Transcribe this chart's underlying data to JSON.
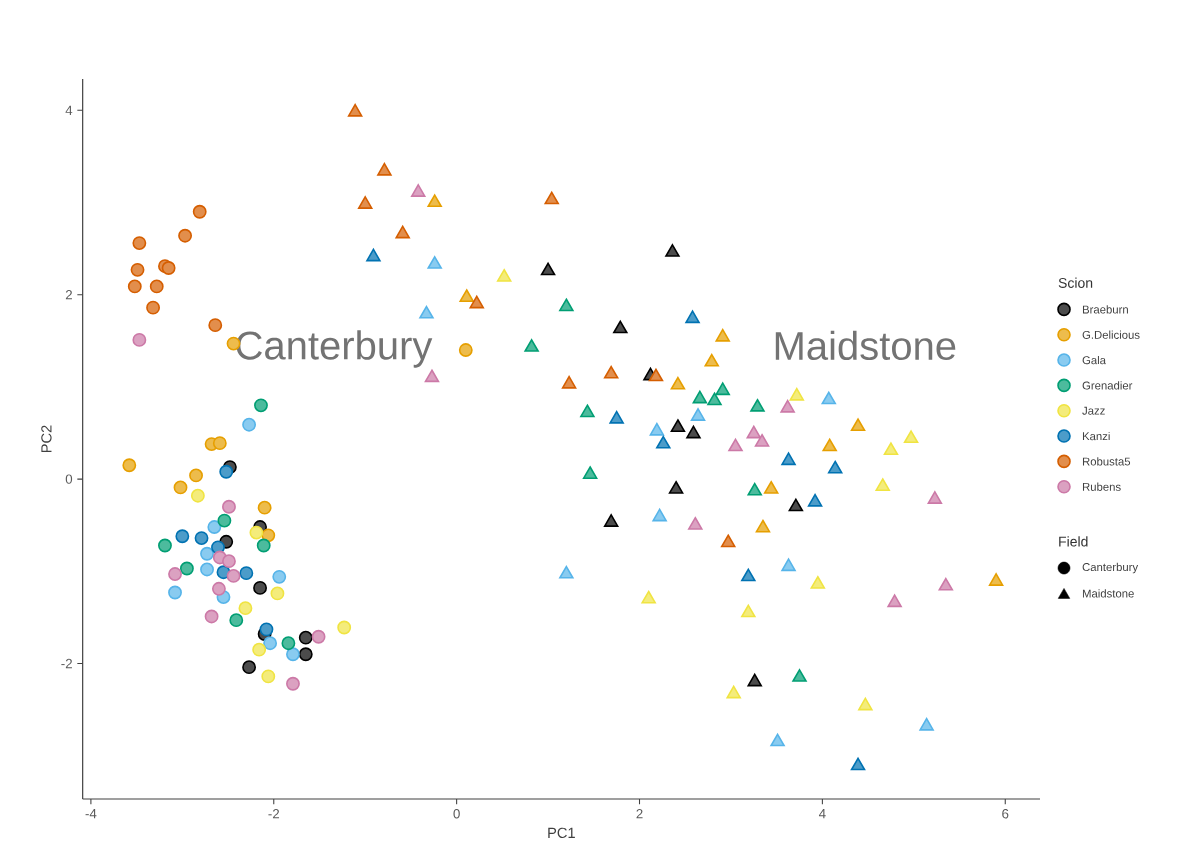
{
  "chart_data": {
    "type": "scatter",
    "xlabel": "PC1",
    "ylabel": "PC2",
    "legend_title": "Scion",
    "legend": "right",
    "xlim": [
      -4.09,
      6.38
    ],
    "ylim": [
      -3.47,
      4.34
    ],
    "xticks": [
      -4,
      -2,
      0,
      2,
      4,
      6
    ],
    "yticks": [
      -2,
      0,
      2,
      4
    ],
    "series": [
      {
        "name": "Braeburn",
        "color": "#000000",
        "marker": "circle",
        "x": [
          -2.48,
          -2.15,
          -2.52,
          -2.15,
          -2.1,
          -1.65,
          -1.65,
          -2.27
        ],
        "values": [
          0.13,
          -0.52,
          -0.68,
          -1.18,
          -1.68,
          -1.72,
          -1.9,
          -2.04
        ]
      },
      {
        "name": "G.Delicious",
        "color": "#e69f00",
        "marker": "circle",
        "x": [
          -2.44,
          0.1,
          -2.68,
          -2.59,
          -3.58,
          -2.85,
          -3.02,
          -2.1,
          -2.06
        ],
        "values": [
          1.47,
          1.4,
          0.38,
          0.39,
          0.15,
          0.04,
          -0.09,
          -0.31,
          -0.61
        ]
      },
      {
        "name": "Gala",
        "color": "#56b4e9",
        "marker": "circle",
        "x": [
          -2.27,
          -2.65,
          -2.73,
          -2.73,
          -1.94,
          -3.08,
          -2.55,
          -2.04,
          -1.79
        ],
        "values": [
          0.59,
          -0.52,
          -0.81,
          -0.98,
          -1.06,
          -1.23,
          -1.28,
          -1.78,
          -1.9
        ]
      },
      {
        "name": "Grenadier",
        "color": "#009e73",
        "marker": "circle",
        "x": [
          -2.14,
          -2.54,
          -3.19,
          -2.11,
          -2.95,
          -2.41,
          -1.84
        ],
        "values": [
          0.8,
          -0.45,
          -0.72,
          -0.72,
          -0.97,
          -1.53,
          -1.78
        ]
      },
      {
        "name": "Jazz",
        "color": "#f0e442",
        "marker": "circle",
        "x": [
          -2.83,
          -2.19,
          -1.96,
          -2.31,
          -1.23,
          -2.16,
          -2.06
        ],
        "values": [
          -0.18,
          -0.58,
          -1.24,
          -1.4,
          -1.61,
          -1.85,
          -2.14
        ]
      },
      {
        "name": "Kanzi",
        "color": "#0072b2",
        "marker": "circle",
        "x": [
          -2.52,
          -3.0,
          -2.79,
          -2.61,
          -2.55,
          -2.3,
          -2.08
        ],
        "values": [
          0.08,
          -0.62,
          -0.64,
          -0.74,
          -1.01,
          -1.02,
          -1.63
        ]
      },
      {
        "name": "Robusta5",
        "color": "#d55e00",
        "marker": "circle",
        "x": [
          -2.81,
          -2.97,
          -3.47,
          -3.19,
          -3.15,
          -3.49,
          -3.52,
          -3.28,
          -3.32,
          -2.64
        ],
        "values": [
          2.9,
          2.64,
          2.56,
          2.31,
          2.29,
          2.27,
          2.09,
          2.09,
          1.86,
          1.67
        ]
      },
      {
        "name": "Rubens",
        "color": "#cc79a7",
        "marker": "circle",
        "x": [
          -3.47,
          -2.49,
          -2.59,
          -2.49,
          -3.08,
          -2.44,
          -2.6,
          -2.68,
          -1.51,
          -1.79
        ],
        "values": [
          1.51,
          -0.3,
          -0.85,
          -0.89,
          -1.03,
          -1.05,
          -1.19,
          -1.49,
          -1.71,
          -2.22
        ]
      },
      {
        "color": "#000000",
        "marker": "triangle",
        "x": [
          2.36,
          1.0,
          1.79,
          2.12,
          2.42,
          2.59,
          2.4,
          3.71,
          1.69,
          3.26
        ],
        "values": [
          2.46,
          2.26,
          1.63,
          1.12,
          0.56,
          0.49,
          -0.11,
          -0.3,
          -0.47,
          -2.2
        ]
      },
      {
        "color": "#e69f00",
        "marker": "triangle",
        "x": [
          -0.24,
          0.11,
          2.91,
          2.79,
          2.42,
          4.39,
          4.08,
          3.44,
          3.35,
          5.9
        ],
        "values": [
          3.0,
          1.97,
          1.54,
          1.27,
          1.02,
          0.57,
          0.35,
          -0.11,
          -0.53,
          -1.11
        ]
      },
      {
        "color": "#56b4e9",
        "marker": "triangle",
        "x": [
          -0.24,
          -0.33,
          4.07,
          2.64,
          2.19,
          2.22,
          1.2,
          3.63,
          5.14,
          3.51
        ],
        "values": [
          2.33,
          1.79,
          0.86,
          0.68,
          0.52,
          -0.41,
          -1.03,
          -0.95,
          -2.68,
          -2.85
        ]
      },
      {
        "color": "#009e73",
        "marker": "triangle",
        "x": [
          1.2,
          0.82,
          2.66,
          2.82,
          2.91,
          3.29,
          1.43,
          1.46,
          3.26,
          3.75
        ],
        "values": [
          1.87,
          1.43,
          0.87,
          0.85,
          0.96,
          0.78,
          0.72,
          0.05,
          -0.13,
          -2.15
        ]
      },
      {
        "color": "#f0e442",
        "marker": "triangle",
        "x": [
          0.52,
          3.72,
          4.97,
          4.75,
          4.66,
          3.95,
          2.1,
          3.19,
          3.03,
          4.47
        ],
        "values": [
          2.19,
          0.9,
          0.44,
          0.31,
          -0.08,
          -1.14,
          -1.3,
          -1.45,
          -2.33,
          -2.46
        ]
      },
      {
        "color": "#0072b2",
        "marker": "triangle",
        "x": [
          -0.91,
          2.58,
          1.75,
          2.26,
          3.63,
          4.14,
          3.92,
          3.19,
          4.39
        ],
        "values": [
          2.41,
          1.74,
          0.65,
          0.38,
          0.2,
          0.11,
          -0.25,
          -1.06,
          -3.11
        ]
      },
      {
        "color": "#d55e00",
        "marker": "triangle",
        "x": [
          -1.11,
          -0.79,
          -1.0,
          -0.59,
          1.04,
          0.22,
          1.23,
          1.69,
          2.18,
          2.97
        ],
        "values": [
          3.98,
          3.34,
          2.98,
          2.66,
          3.03,
          1.9,
          1.03,
          1.14,
          1.11,
          -0.69
        ]
      },
      {
        "color": "#cc79a7",
        "marker": "triangle",
        "x": [
          -0.42,
          -0.27,
          3.62,
          3.25,
          3.34,
          3.05,
          2.61,
          5.23,
          5.35,
          4.79
        ],
        "values": [
          3.11,
          1.1,
          0.77,
          0.49,
          0.4,
          0.35,
          -0.5,
          -0.22,
          -1.16,
          -1.34
        ]
      }
    ],
    "annotations": [
      "Canterbury",
      "Maidstone",
      "Field",
      "Canterbury",
      "Maidstone"
    ]
  }
}
